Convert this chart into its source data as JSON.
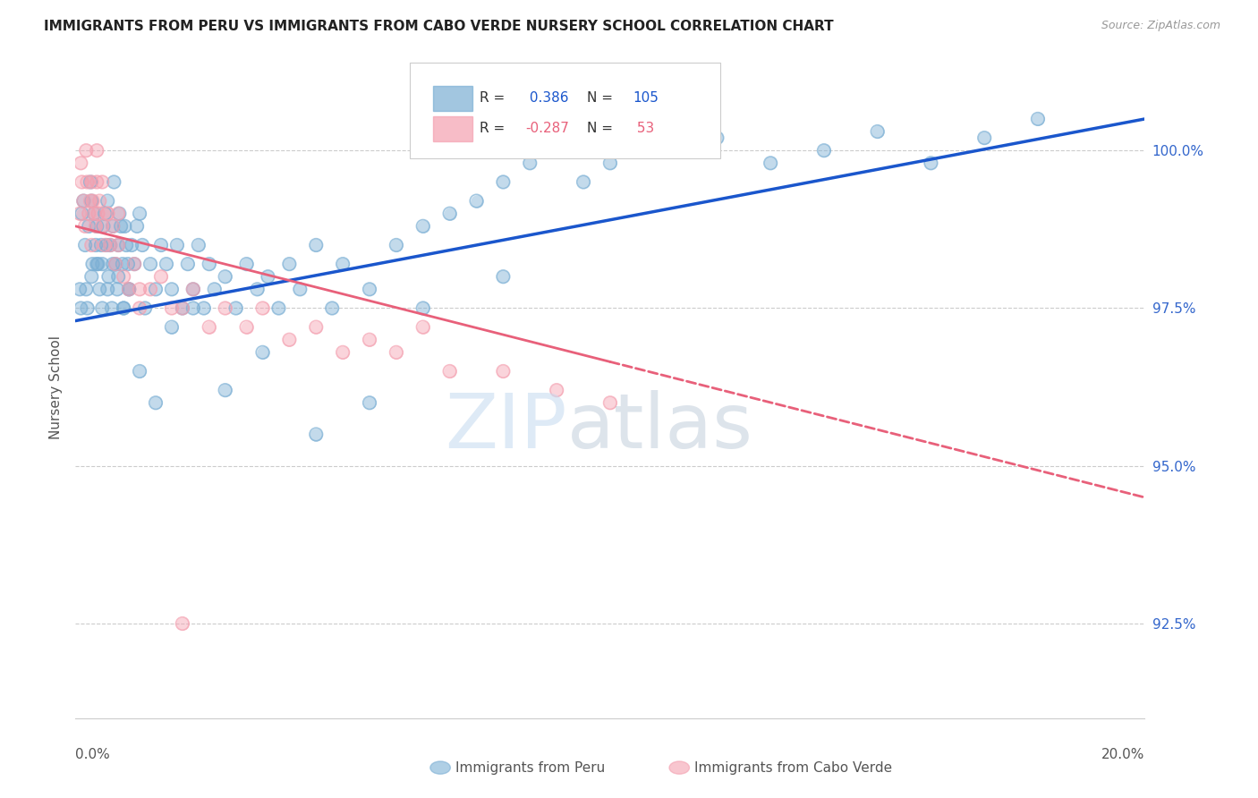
{
  "title": "IMMIGRANTS FROM PERU VS IMMIGRANTS FROM CABO VERDE NURSERY SCHOOL CORRELATION CHART",
  "source": "Source: ZipAtlas.com",
  "ylabel": "Nursery School",
  "ytick_labels": [
    "92.5%",
    "95.0%",
    "97.5%",
    "100.0%"
  ],
  "ytick_values": [
    92.5,
    95.0,
    97.5,
    100.0
  ],
  "xmin": 0.0,
  "xmax": 20.0,
  "ymin": 91.0,
  "ymax": 101.5,
  "r_peru": 0.386,
  "n_peru": 105,
  "r_cabo": -0.287,
  "n_cabo": 53,
  "color_peru": "#7BAFD4",
  "color_cabo": "#F4A0B0",
  "line_color_peru": "#1A56CC",
  "line_color_cabo": "#E8607A",
  "legend_label_peru": "Immigrants from Peru",
  "legend_label_cabo": "Immigrants from Cabo Verde",
  "peru_line_x0": 0.0,
  "peru_line_y0": 97.3,
  "peru_line_x1": 20.0,
  "peru_line_y1": 100.5,
  "cabo_line_x0": 0.0,
  "cabo_line_y0": 98.8,
  "cabo_line_x1": 20.0,
  "cabo_line_y1": 94.5,
  "cabo_solid_end": 10.0,
  "peru_x": [
    0.08,
    0.12,
    0.15,
    0.18,
    0.22,
    0.25,
    0.28,
    0.3,
    0.32,
    0.35,
    0.38,
    0.4,
    0.42,
    0.45,
    0.48,
    0.5,
    0.52,
    0.55,
    0.58,
    0.6,
    0.62,
    0.65,
    0.68,
    0.7,
    0.72,
    0.75,
    0.78,
    0.8,
    0.82,
    0.85,
    0.88,
    0.9,
    0.92,
    0.95,
    0.98,
    1.0,
    1.05,
    1.1,
    1.15,
    1.2,
    1.25,
    1.3,
    1.4,
    1.5,
    1.6,
    1.7,
    1.8,
    1.9,
    2.0,
    2.1,
    2.2,
    2.3,
    2.4,
    2.5,
    2.6,
    2.8,
    3.0,
    3.2,
    3.4,
    3.6,
    3.8,
    4.0,
    4.2,
    4.5,
    4.8,
    5.0,
    5.5,
    6.0,
    6.5,
    7.0,
    7.5,
    8.0,
    8.5,
    9.0,
    9.5,
    10.0,
    10.5,
    11.0,
    12.0,
    13.0,
    14.0,
    15.0,
    16.0,
    17.0,
    18.0,
    0.1,
    0.2,
    0.3,
    0.4,
    0.5,
    0.6,
    0.7,
    0.8,
    0.9,
    1.0,
    1.2,
    1.5,
    1.8,
    2.2,
    2.8,
    3.5,
    4.5,
    5.5,
    6.5,
    8.0
  ],
  "peru_y": [
    97.8,
    99.0,
    99.2,
    98.5,
    97.5,
    98.8,
    99.5,
    99.2,
    98.2,
    99.0,
    98.5,
    98.8,
    98.2,
    97.8,
    98.5,
    98.2,
    98.8,
    99.0,
    98.5,
    99.2,
    98.0,
    98.5,
    97.5,
    98.8,
    99.5,
    98.2,
    97.8,
    98.5,
    99.0,
    98.8,
    98.2,
    97.5,
    98.8,
    98.5,
    98.2,
    97.8,
    98.5,
    98.2,
    98.8,
    99.0,
    98.5,
    97.5,
    98.2,
    97.8,
    98.5,
    98.2,
    97.8,
    98.5,
    97.5,
    98.2,
    97.8,
    98.5,
    97.5,
    98.2,
    97.8,
    98.0,
    97.5,
    98.2,
    97.8,
    98.0,
    97.5,
    98.2,
    97.8,
    98.5,
    97.5,
    98.2,
    97.8,
    98.5,
    98.8,
    99.0,
    99.2,
    99.5,
    99.8,
    100.0,
    99.5,
    99.8,
    100.2,
    100.0,
    100.2,
    99.8,
    100.0,
    100.3,
    99.8,
    100.2,
    100.5,
    97.5,
    97.8,
    98.0,
    98.2,
    97.5,
    97.8,
    98.2,
    98.0,
    97.5,
    97.8,
    96.5,
    96.0,
    97.2,
    97.5,
    96.2,
    96.8,
    95.5,
    96.0,
    97.5,
    98.0
  ],
  "cabo_x": [
    0.08,
    0.12,
    0.15,
    0.18,
    0.22,
    0.25,
    0.28,
    0.3,
    0.32,
    0.35,
    0.38,
    0.4,
    0.42,
    0.45,
    0.5,
    0.55,
    0.6,
    0.65,
    0.7,
    0.75,
    0.8,
    0.9,
    1.0,
    1.1,
    1.2,
    1.4,
    1.6,
    1.8,
    2.0,
    2.2,
    2.5,
    2.8,
    3.2,
    3.5,
    4.0,
    4.5,
    5.0,
    5.5,
    6.0,
    6.5,
    7.0,
    8.0,
    9.0,
    10.0,
    0.1,
    0.2,
    0.3,
    0.4,
    0.5,
    0.6,
    0.8,
    1.2,
    2.0
  ],
  "cabo_y": [
    99.0,
    99.5,
    99.2,
    98.8,
    99.5,
    99.0,
    99.2,
    98.5,
    99.2,
    99.0,
    98.8,
    99.5,
    99.0,
    99.2,
    98.8,
    98.5,
    99.0,
    98.5,
    98.8,
    98.2,
    98.5,
    98.0,
    97.8,
    98.2,
    97.5,
    97.8,
    98.0,
    97.5,
    97.5,
    97.8,
    97.2,
    97.5,
    97.2,
    97.5,
    97.0,
    97.2,
    96.8,
    97.0,
    96.8,
    97.2,
    96.5,
    96.5,
    96.2,
    96.0,
    99.8,
    100.0,
    99.5,
    100.0,
    99.5,
    99.0,
    99.0,
    97.8,
    92.5
  ]
}
